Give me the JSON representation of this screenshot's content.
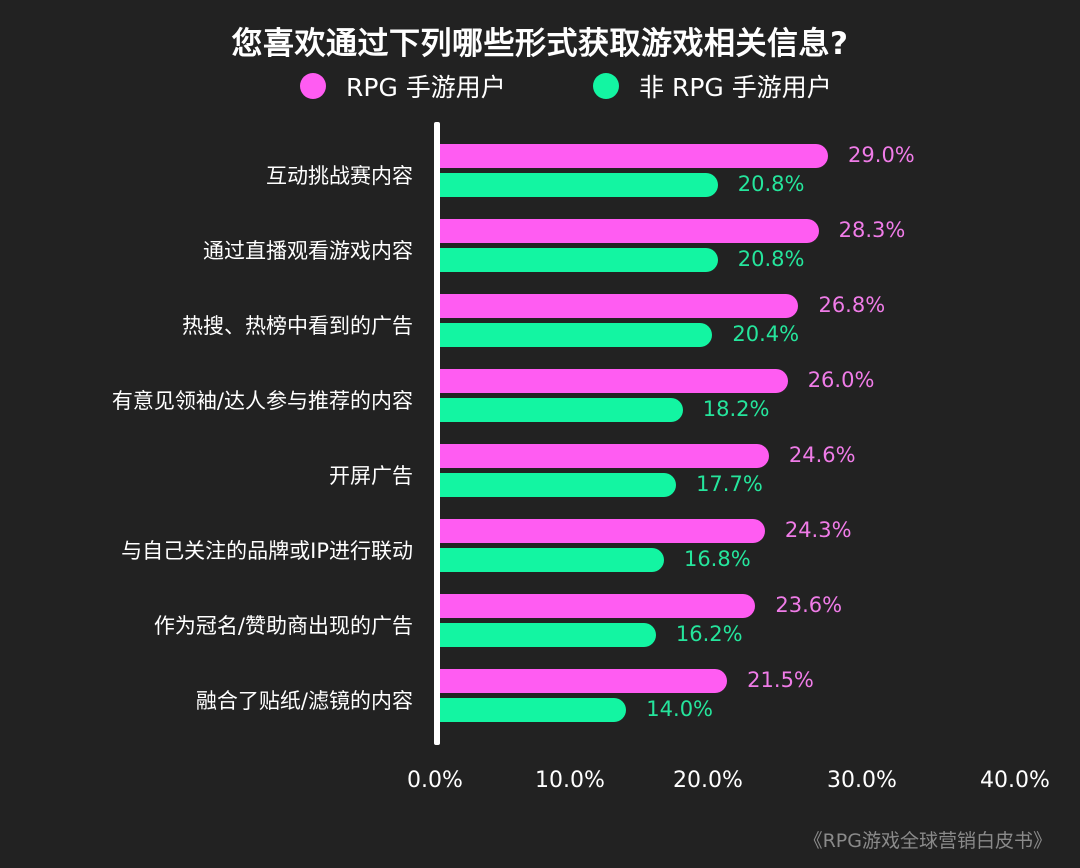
{
  "colors": {
    "background": "#222222",
    "rpg": "#FF5CF2",
    "non_rpg": "#13F5A2",
    "rpg_text": "#F07CE8",
    "non_rpg_text": "#25E59C",
    "axis": "#FFFFFF",
    "source_text": "#8A8A8A"
  },
  "chart_data": {
    "type": "bar",
    "orientation": "horizontal",
    "title": "您喜欢通过下列哪些形式获取游戏相关信息?",
    "categories": [
      "互动挑战赛内容",
      "通过直播观看游戏内容",
      "热搜、热榜中看到的广告",
      "有意见领袖/达人参与推荐的内容",
      "开屏广告",
      "与自己关注的品牌或IP进行联动",
      "作为冠名/赞助商出现的广告",
      "融合了贴纸/滤镜的内容"
    ],
    "series": [
      {
        "name": "RPG 手游用户",
        "values": [
          29.0,
          28.3,
          26.8,
          26.0,
          24.6,
          24.3,
          23.6,
          21.5
        ],
        "labels": [
          "29.0%",
          "28.3%",
          "26.8%",
          "26.0%",
          "24.6%",
          "24.3%",
          "23.6%",
          "21.5%"
        ]
      },
      {
        "name": "非 RPG 手游用户",
        "values": [
          20.8,
          20.8,
          20.4,
          18.2,
          17.7,
          16.8,
          16.2,
          14.0
        ],
        "labels": [
          "20.8%",
          "20.8%",
          "20.4%",
          "18.2%",
          "17.7%",
          "16.8%",
          "16.2%",
          "14.0%"
        ]
      }
    ],
    "xlabel": "",
    "ylabel": "",
    "xlim": [
      0,
      40
    ],
    "x_ticks": [
      "0.0%",
      "10.0%",
      "20.0%",
      "30.0%",
      "40.0%"
    ],
    "grid": false,
    "legend_position": "top"
  },
  "legend": {
    "rpg": "RPG 手游用户",
    "non_rpg": "非 RPG 手游用户"
  },
  "source": "《RPG游戏全球营销白皮书》"
}
